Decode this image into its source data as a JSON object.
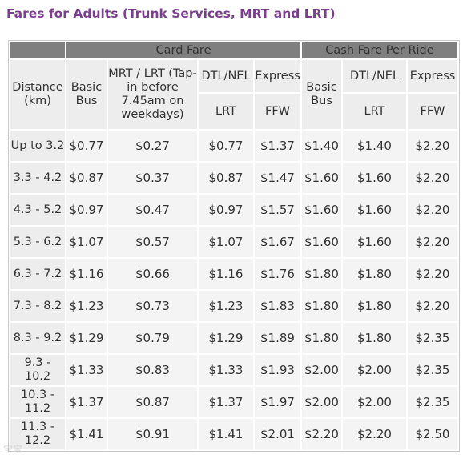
{
  "title": "Fares for Adults (Trunk Services, MRT and LRT)",
  "groups": {
    "card_fare": "Card Fare",
    "cash_fare": "Cash Fare Per Ride"
  },
  "headers": {
    "distance": "Distance (km)",
    "card_basic_bus": "Basic Bus",
    "card_mrt_lrt": "MRT / LRT (Tap-in before 7.45am on weekdays)",
    "card_dtl_nel": "DTL/NEL",
    "card_express": "Express",
    "card_lrt": "LRT",
    "card_ffw": "FFW",
    "cash_basic_bus": "Basic Bus",
    "cash_dtl_nel": "DTL/NEL",
    "cash_express": "Express",
    "cash_lrt": "LRT",
    "cash_ffw": "FFW"
  },
  "rows": [
    {
      "distance": "Up to 3.2",
      "card_basic_bus": "$0.77",
      "card_mrt_lrt": "$0.27",
      "card_dtl_nel_lrt": "$0.77",
      "card_express_ffw": "$1.37",
      "cash_basic_bus": "$1.40",
      "cash_dtl_nel_lrt": "$1.40",
      "cash_express_ffw": "$2.20"
    },
    {
      "distance": "3.3 - 4.2",
      "card_basic_bus": "$0.87",
      "card_mrt_lrt": "$0.37",
      "card_dtl_nel_lrt": "$0.87",
      "card_express_ffw": "$1.47",
      "cash_basic_bus": "$1.60",
      "cash_dtl_nel_lrt": "$1.60",
      "cash_express_ffw": "$2.20"
    },
    {
      "distance": "4.3 - 5.2",
      "card_basic_bus": "$0.97",
      "card_mrt_lrt": "$0.47",
      "card_dtl_nel_lrt": "$0.97",
      "card_express_ffw": "$1.57",
      "cash_basic_bus": "$1.60",
      "cash_dtl_nel_lrt": "$1.60",
      "cash_express_ffw": "$2.20"
    },
    {
      "distance": "5.3 - 6.2",
      "card_basic_bus": "$1.07",
      "card_mrt_lrt": "$0.57",
      "card_dtl_nel_lrt": "$1.07",
      "card_express_ffw": "$1.67",
      "cash_basic_bus": "$1.60",
      "cash_dtl_nel_lrt": "$1.60",
      "cash_express_ffw": "$2.20"
    },
    {
      "distance": "6.3 - 7.2",
      "card_basic_bus": "$1.16",
      "card_mrt_lrt": "$0.66",
      "card_dtl_nel_lrt": "$1.16",
      "card_express_ffw": "$1.76",
      "cash_basic_bus": "$1.80",
      "cash_dtl_nel_lrt": "$1.80",
      "cash_express_ffw": "$2.20"
    },
    {
      "distance": "7.3 - 8.2",
      "card_basic_bus": "$1.23",
      "card_mrt_lrt": "$0.73",
      "card_dtl_nel_lrt": "$1.23",
      "card_express_ffw": "$1.83",
      "cash_basic_bus": "$1.80",
      "cash_dtl_nel_lrt": "$1.80",
      "cash_express_ffw": "$2.20"
    },
    {
      "distance": "8.3 - 9.2",
      "card_basic_bus": "$1.29",
      "card_mrt_lrt": "$0.79",
      "card_dtl_nel_lrt": "$1.29",
      "card_express_ffw": "$1.89",
      "cash_basic_bus": "$1.80",
      "cash_dtl_nel_lrt": "$1.80",
      "cash_express_ffw": "$2.35"
    },
    {
      "distance": "9.3 - 10.2",
      "card_basic_bus": "$1.33",
      "card_mrt_lrt": "$0.83",
      "card_dtl_nel_lrt": "$1.33",
      "card_express_ffw": "$1.93",
      "cash_basic_bus": "$2.00",
      "cash_dtl_nel_lrt": "$2.00",
      "cash_express_ffw": "$2.35"
    },
    {
      "distance": "10.3 - 11.2",
      "card_basic_bus": "$1.37",
      "card_mrt_lrt": "$0.87",
      "card_dtl_nel_lrt": "$1.37",
      "card_express_ffw": "$1.97",
      "cash_basic_bus": "$2.00",
      "cash_dtl_nel_lrt": "$2.00",
      "cash_express_ffw": "$2.35"
    },
    {
      "distance": "11.3 - 12.2",
      "card_basic_bus": "$1.41",
      "card_mrt_lrt": "$0.91",
      "card_dtl_nel_lrt": "$1.41",
      "card_express_ffw": "$2.01",
      "cash_basic_bus": "$2.20",
      "cash_dtl_nel_lrt": "$2.20",
      "cash_express_ffw": "$2.50"
    }
  ]
}
